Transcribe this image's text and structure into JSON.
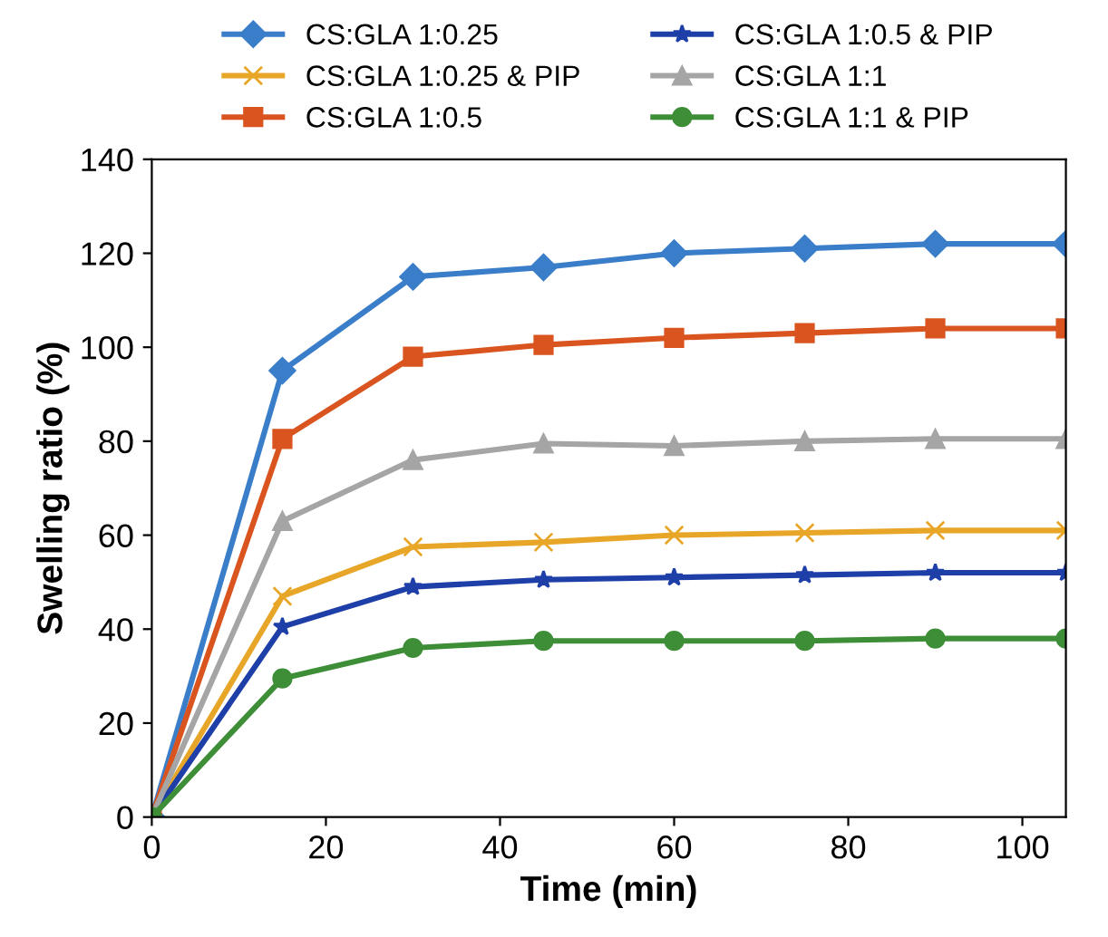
{
  "chart_data": {
    "type": "line",
    "xlabel": "Time (min)",
    "ylabel": "Swelling ratio (%)",
    "xlim": [
      0,
      105
    ],
    "xticks": [
      0,
      20,
      40,
      60,
      80,
      100
    ],
    "ylim": [
      0,
      140
    ],
    "yticks": [
      0,
      20,
      40,
      60,
      80,
      100,
      120,
      140
    ],
    "legend": "top",
    "line_style": "solid",
    "x": [
      0,
      15,
      30,
      45,
      60,
      75,
      90,
      105
    ],
    "series": [
      {
        "name": "CS:GLA 1:0.25",
        "color": "#3a7dc9",
        "marker": "diamond",
        "values": [
          0,
          95,
          115,
          117,
          120,
          121,
          122,
          122
        ]
      },
      {
        "name": "CS:GLA 1:0.25 & PIP",
        "color": "#e8a628",
        "marker": "cross",
        "values": [
          0,
          47,
          57.5,
          58.5,
          60,
          60.5,
          61,
          61
        ]
      },
      {
        "name": "CS:GLA 1:0.5",
        "color": "#d9541e",
        "marker": "square",
        "values": [
          0,
          80.5,
          98,
          100.5,
          102,
          103,
          104,
          104
        ]
      },
      {
        "name": "CS:GLA 1:0.5 & PIP",
        "color": "#1f3fa8",
        "marker": "star",
        "values": [
          0,
          40.5,
          49,
          50.5,
          51,
          51.5,
          52,
          52
        ]
      },
      {
        "name": "CS:GLA 1:1",
        "color": "#a5a5a5",
        "marker": "triangle",
        "values": [
          0,
          63,
          76,
          79.5,
          79,
          80,
          80.5,
          80.5
        ]
      },
      {
        "name": "CS:GLA 1:1 & PIP",
        "color": "#3e8e38",
        "marker": "circle",
        "values": [
          0,
          29.5,
          36,
          37.5,
          37.5,
          37.5,
          38,
          38
        ]
      }
    ]
  }
}
